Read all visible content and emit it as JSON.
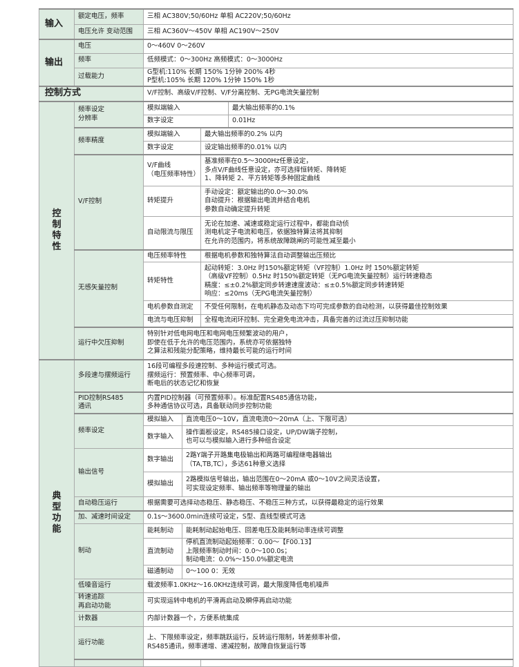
{
  "input": {
    "title": "输入",
    "rows": [
      {
        "label": "额定电压，频率",
        "value": "三相  AC380V;50/60Hz      单相  AC220V;50/60Hz"
      },
      {
        "label": "电压允许 变动范围",
        "value": "三相 AC360V～450V        单相 AC190V～250V"
      }
    ]
  },
  "output": {
    "title": "输出",
    "rows": [
      {
        "label": "电压",
        "value": "0～460V      0～260V"
      },
      {
        "label": "频率",
        "value": "低频模式：0～300Hz  高频模式：0～3000Hz"
      },
      {
        "label": "过载能力",
        "value": "G型机:110% 长期 150% 1分钟 200% 4秒\nP型机:105% 长期 120% 1分钟 150% 1秒"
      }
    ]
  },
  "control_mode": {
    "title": "控制方式",
    "value": "V/F控制、高级V/F控制、V/F分离控制、无PG电流矢量控制"
  },
  "control_features": {
    "title": "控\n制\n特\n性",
    "freq_resolution": {
      "label": "频率设定\n分辨率",
      "rows": [
        {
          "label": "模拟端输入",
          "value": "最大输出频率的0.1%"
        },
        {
          "label": "数字设定",
          "value": "0.01Hz"
        }
      ]
    },
    "freq_accuracy": {
      "label": "频率精度",
      "rows": [
        {
          "label": "模拟端输入",
          "value": "最大输出频率的0.2% 以内"
        },
        {
          "label": "数字设定",
          "value": "设定输出频率的0.01% 以内"
        }
      ]
    },
    "vf_control": {
      "label": "V/F控制",
      "rows": [
        {
          "label": "V/F曲线\n（电压频率特性）",
          "value": "基准频率在0.5～3000Hz任意设定，\n多点V/F曲线任意设定，亦可选择恒转矩、降转矩\n1、降转矩 2、平方转矩等多种固定曲线"
        },
        {
          "label": "转矩提升",
          "value": "手动设定：额定输出的0.0～30.0%\n自动提升：根据输出电流并结合电机\n参数自动确定提升转矩"
        },
        {
          "label": "自动限流与限压",
          "value": "无论在加速、减速或稳定运行过程中，都能自动侦\n测电机定子电流和电压，依据独特算法将其抑制\n在允许的范围内，将系统故障跳闸的可能性减至最小"
        }
      ]
    },
    "sensorless_vector": {
      "label": "无感矢量控制",
      "rows": [
        {
          "label": "电压频率特性",
          "value": "根据电机参数和独特算法自动调整输出压频比"
        },
        {
          "label": "转矩特性",
          "value": "起动转矩：3.0Hz 时150%额定转矩（VF控制）1.0Hz 时 150%额定转矩\n（高级VF控制）0.5Hz 时150%额定转矩（无PG电流矢量控制）运行转速稳态\n精度：≤±0.2%额定同步转速速度波动：≤±0.5%额定同步转速转矩\n响应：≤20ms（无PG电流矢量控制）"
        },
        {
          "label": "电机参数自测定",
          "value": "不受任何限制，在电机静态及动态下均可完成参数的自动检测，以获得最佳控制效果"
        },
        {
          "label": "电流与电压抑制",
          "value": "全程电流闭环控制、完全避免电流冲击，具备完善的过流过压抑制功能"
        }
      ]
    },
    "undervoltage": {
      "label": "运行中欠压抑制",
      "value": "特别针对低电网电压和电网电压频繁波动的用户，\n即使在低于允许的电压范围内，系统亦可依据独特\n之算法和残能分配策略，维持最长可能的运行时间"
    }
  },
  "typical_functions": {
    "title": "典\n型\n功\n能",
    "multi_speed": {
      "label": "多段速与摆频运行",
      "value": "16段可编程多段速控制、多种运行模式可选。\n摆频运行：预置频率、中心频率可调，\n断电后的状态记忆和恢复"
    },
    "pid": {
      "label": "PID控制RS485\n通讯",
      "value": "内置PID控制器（可预置频率）。标准配置RS485通信功能，\n多种通信协议可选，具备联动同步控制功能"
    },
    "freq_setting": {
      "label": "频率设定",
      "rows": [
        {
          "label": "模拟输入",
          "value": "直流电压0～10V，直流电流0～20mA（上、下限可选）"
        },
        {
          "label": "数字输入",
          "value": "操作面板设定，RS485接口设定，UP/DW端子控制，\n也可以与模拟输入进行多种组合设定"
        }
      ]
    },
    "output_signal": {
      "label": "输出信号",
      "rows": [
        {
          "label": "数字输出",
          "value": "2路Y端子开路集电极输出和两路可编程继电器输出\n（TA,TB,TC），多达61种意义选择"
        },
        {
          "label": "模拟输出",
          "value": "2路模拟信号输出，输出范围在0～20mA 或0～10V之间灵活设置，\n可实现设定频率、输出频率等物理量的输出"
        }
      ]
    },
    "avr": {
      "label": "自动稳压运行",
      "value": "根据需要可选择动态稳压、静态稳压、不稳压三种方式，以获得最稳定的运行效果"
    },
    "accel": {
      "label": "加、减速时间设定",
      "value": "0.1s～3600.0min连续可设定，S型、直线型模式可选"
    },
    "braking": {
      "label": "制动",
      "rows": [
        {
          "label": "能耗制动",
          "value": "能耗制动起始电压、回差电压及能耗制动率连续可调整"
        },
        {
          "label": "直流制动",
          "value": "停机直流制动起始频率：0.00～【F00.13】\n上限频率制动时间：0.0～100.0s；\n制动电流：0.0%～150.0%额定电流"
        },
        {
          "label": "磁通制动",
          "value": "0～100  0：无效"
        }
      ]
    },
    "low_noise": {
      "label": "低噪音运行",
      "value": " 载波频率1.0KHz～16.0KHz连续可调，最大限度降低电机噪声"
    },
    "speed_tracking": {
      "label": "转速追踪\n再启动功能",
      "value": "可实现运转中电机的平滑再启动及瞬停再启动功能"
    },
    "counter": {
      "label": "计数器",
      "value": "内部计数器一个，方便系统集成"
    },
    "run_functions": {
      "label": "运行功能",
      "value": "上、下限频率设定，频率跳跃运行，反转运行限制，转差频率补偿，\nRS485通讯，频率递增、递减控制，故障自恢复运行等"
    }
  },
  "colors": {
    "label_bg": "#dcebe0",
    "border": "#a9a9a9"
  }
}
